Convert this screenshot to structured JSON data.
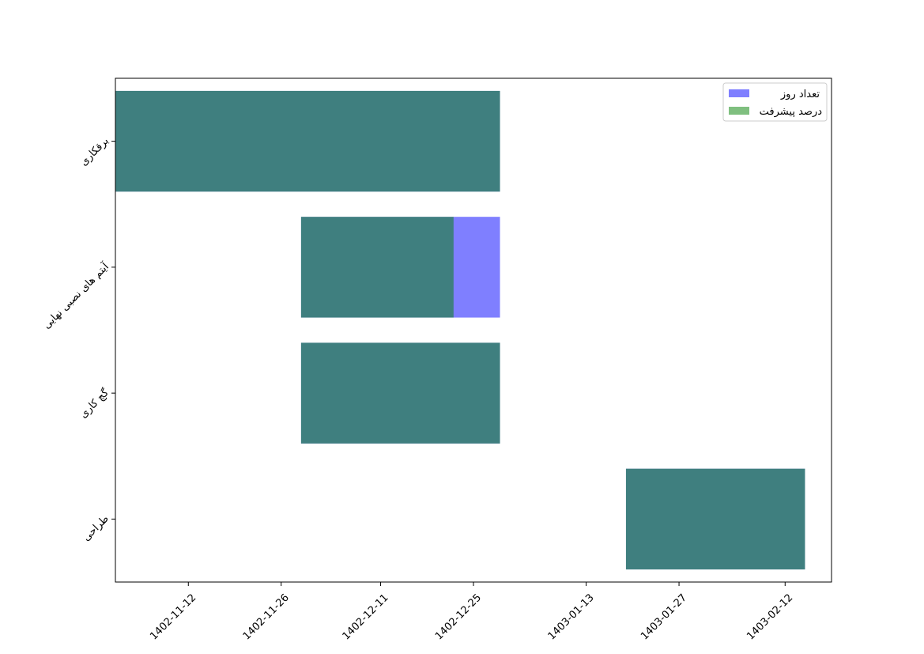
{
  "chart_data": {
    "type": "gantt-bar",
    "orientation": "horizontal",
    "title": "",
    "xlabel": "",
    "ylabel": "",
    "x_unit": "days since 1402-11-01",
    "xlim": [
      0,
      108
    ],
    "x_ticks": [
      {
        "value": 11,
        "label": "1402-11-12"
      },
      {
        "value": 25,
        "label": "1402-11-26"
      },
      {
        "value": 40,
        "label": "1402-12-11"
      },
      {
        "value": 54,
        "label": "1402-12-25"
      },
      {
        "value": 71,
        "label": "1403-01-13"
      },
      {
        "value": 85,
        "label": "1403-01-27"
      },
      {
        "value": 101,
        "label": "1403-02-12"
      }
    ],
    "categories": [
      "برقکاری",
      "آیتم های نصبی نهایی",
      "گچ کاری",
      "طراحی"
    ],
    "series": [
      {
        "name": "تعداد روز",
        "color": "#0000ff",
        "alpha": 0.5,
        "bars": [
          {
            "category": "برقکاری",
            "start": 0,
            "duration": 58
          },
          {
            "category": "آیتم های نصبی نهایی",
            "start": 28,
            "duration": 30
          },
          {
            "category": "گچ کاری",
            "start": 28,
            "duration": 30
          },
          {
            "category": "طراحی",
            "start": 77,
            "duration": 27
          }
        ]
      },
      {
        "name": "درصد پیشرفت",
        "color": "#008000",
        "alpha": 0.5,
        "bars": [
          {
            "category": "برقکاری",
            "start": 0,
            "duration": 58
          },
          {
            "category": "آیتم های نصبی نهایی",
            "start": 28,
            "duration": 23
          },
          {
            "category": "گچ کاری",
            "start": 28,
            "duration": 30
          },
          {
            "category": "طراحی",
            "start": 77,
            "duration": 27
          }
        ]
      }
    ],
    "legend_position": "top-right",
    "grid": false
  }
}
